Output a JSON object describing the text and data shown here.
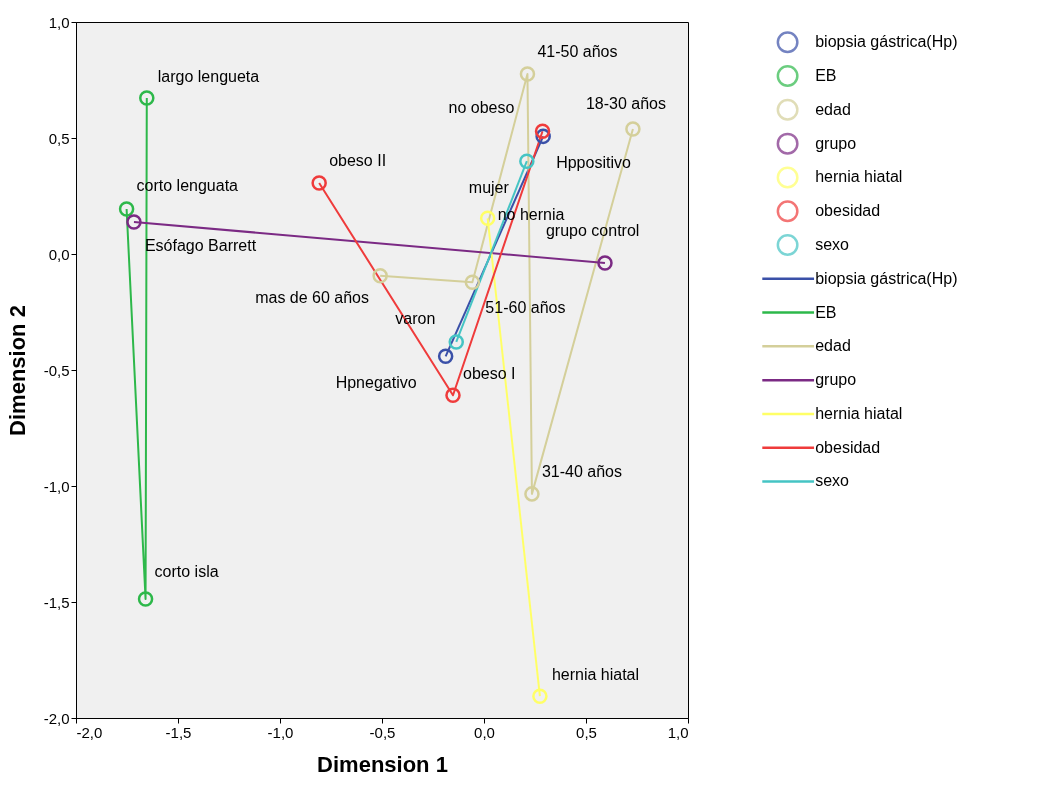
{
  "chart_data": {
    "type": "line",
    "xlabel": "Dimension 1",
    "ylabel": "Dimension 2",
    "marker": "circle",
    "line_style": "solid",
    "grid": false,
    "legend": "right",
    "xlim": [
      -2.0,
      1.0
    ],
    "ylim": [
      -2.0,
      1.0
    ],
    "xticks": [
      {
        "value": -2.0,
        "label": "-2,0"
      },
      {
        "value": -1.5,
        "label": "-1,5"
      },
      {
        "value": -1.0,
        "label": "-1,0"
      },
      {
        "value": -0.5,
        "label": "-0,5"
      },
      {
        "value": 0.0,
        "label": "0,0"
      },
      {
        "value": 0.5,
        "label": "0,5"
      },
      {
        "value": 1.0,
        "label": "1,0"
      }
    ],
    "yticks": [
      {
        "value": -2.0,
        "label": "-2,0"
      },
      {
        "value": -1.5,
        "label": "-1,5"
      },
      {
        "value": -1.0,
        "label": "-1,0"
      },
      {
        "value": -0.5,
        "label": "-0,5"
      },
      {
        "value": 0.0,
        "label": "0,0"
      },
      {
        "value": 0.5,
        "label": "0,5"
      },
      {
        "value": 1.0,
        "label": "1,0"
      }
    ],
    "series": [
      {
        "name": "biopsia gástrica(Hp)",
        "color": "#3a50a8",
        "x": [
          0.29,
          -0.188
        ],
        "values": [
          0.507,
          -0.441
        ],
        "value_labels": [
          "Hppositivo",
          "Hpnegativo"
        ]
      },
      {
        "name": "EB",
        "color": "#2db84a",
        "x": [
          -1.752,
          -1.659,
          -1.653
        ],
        "values": [
          0.194,
          -1.487,
          0.672
        ],
        "value_labels": [
          "corto lenguata",
          "corto isla",
          "largo lengueta"
        ]
      },
      {
        "name": "edad",
        "color": "#d4cf9a",
        "x": [
          0.73,
          0.235,
          0.213,
          -0.057,
          -0.509
        ],
        "values": [
          0.539,
          -1.034,
          0.776,
          -0.122,
          -0.094
        ],
        "value_labels": [
          "18-30 años",
          "31-40 años",
          "41-50 años",
          "51-60 años",
          "mas de 60 años"
        ]
      },
      {
        "name": "grupo",
        "color": "#7b2a84",
        "x": [
          -1.716,
          0.593
        ],
        "values": [
          0.138,
          -0.039
        ],
        "value_labels": [
          "Esófago Barrett",
          "grupo control"
        ]
      },
      {
        "name": "hernia hiatal",
        "color": "#ffff66",
        "x": [
          0.018,
          0.274
        ],
        "values": [
          0.154,
          -1.906
        ],
        "value_labels": [
          "no hernia",
          "hernia hiatal"
        ]
      },
      {
        "name": "obesidad",
        "color": "#ef3b3b",
        "x": [
          -0.808,
          -0.152,
          0.287
        ],
        "values": [
          0.306,
          -0.609,
          0.529
        ],
        "value_labels": [
          "obeso II",
          "obeso I",
          "no obeso"
        ]
      },
      {
        "name": "sexo",
        "color": "#45c4c4",
        "x": [
          0.21,
          -0.136
        ],
        "values": [
          0.4,
          -0.379
        ],
        "value_labels": [
          "mujer",
          "varon"
        ]
      }
    ]
  }
}
